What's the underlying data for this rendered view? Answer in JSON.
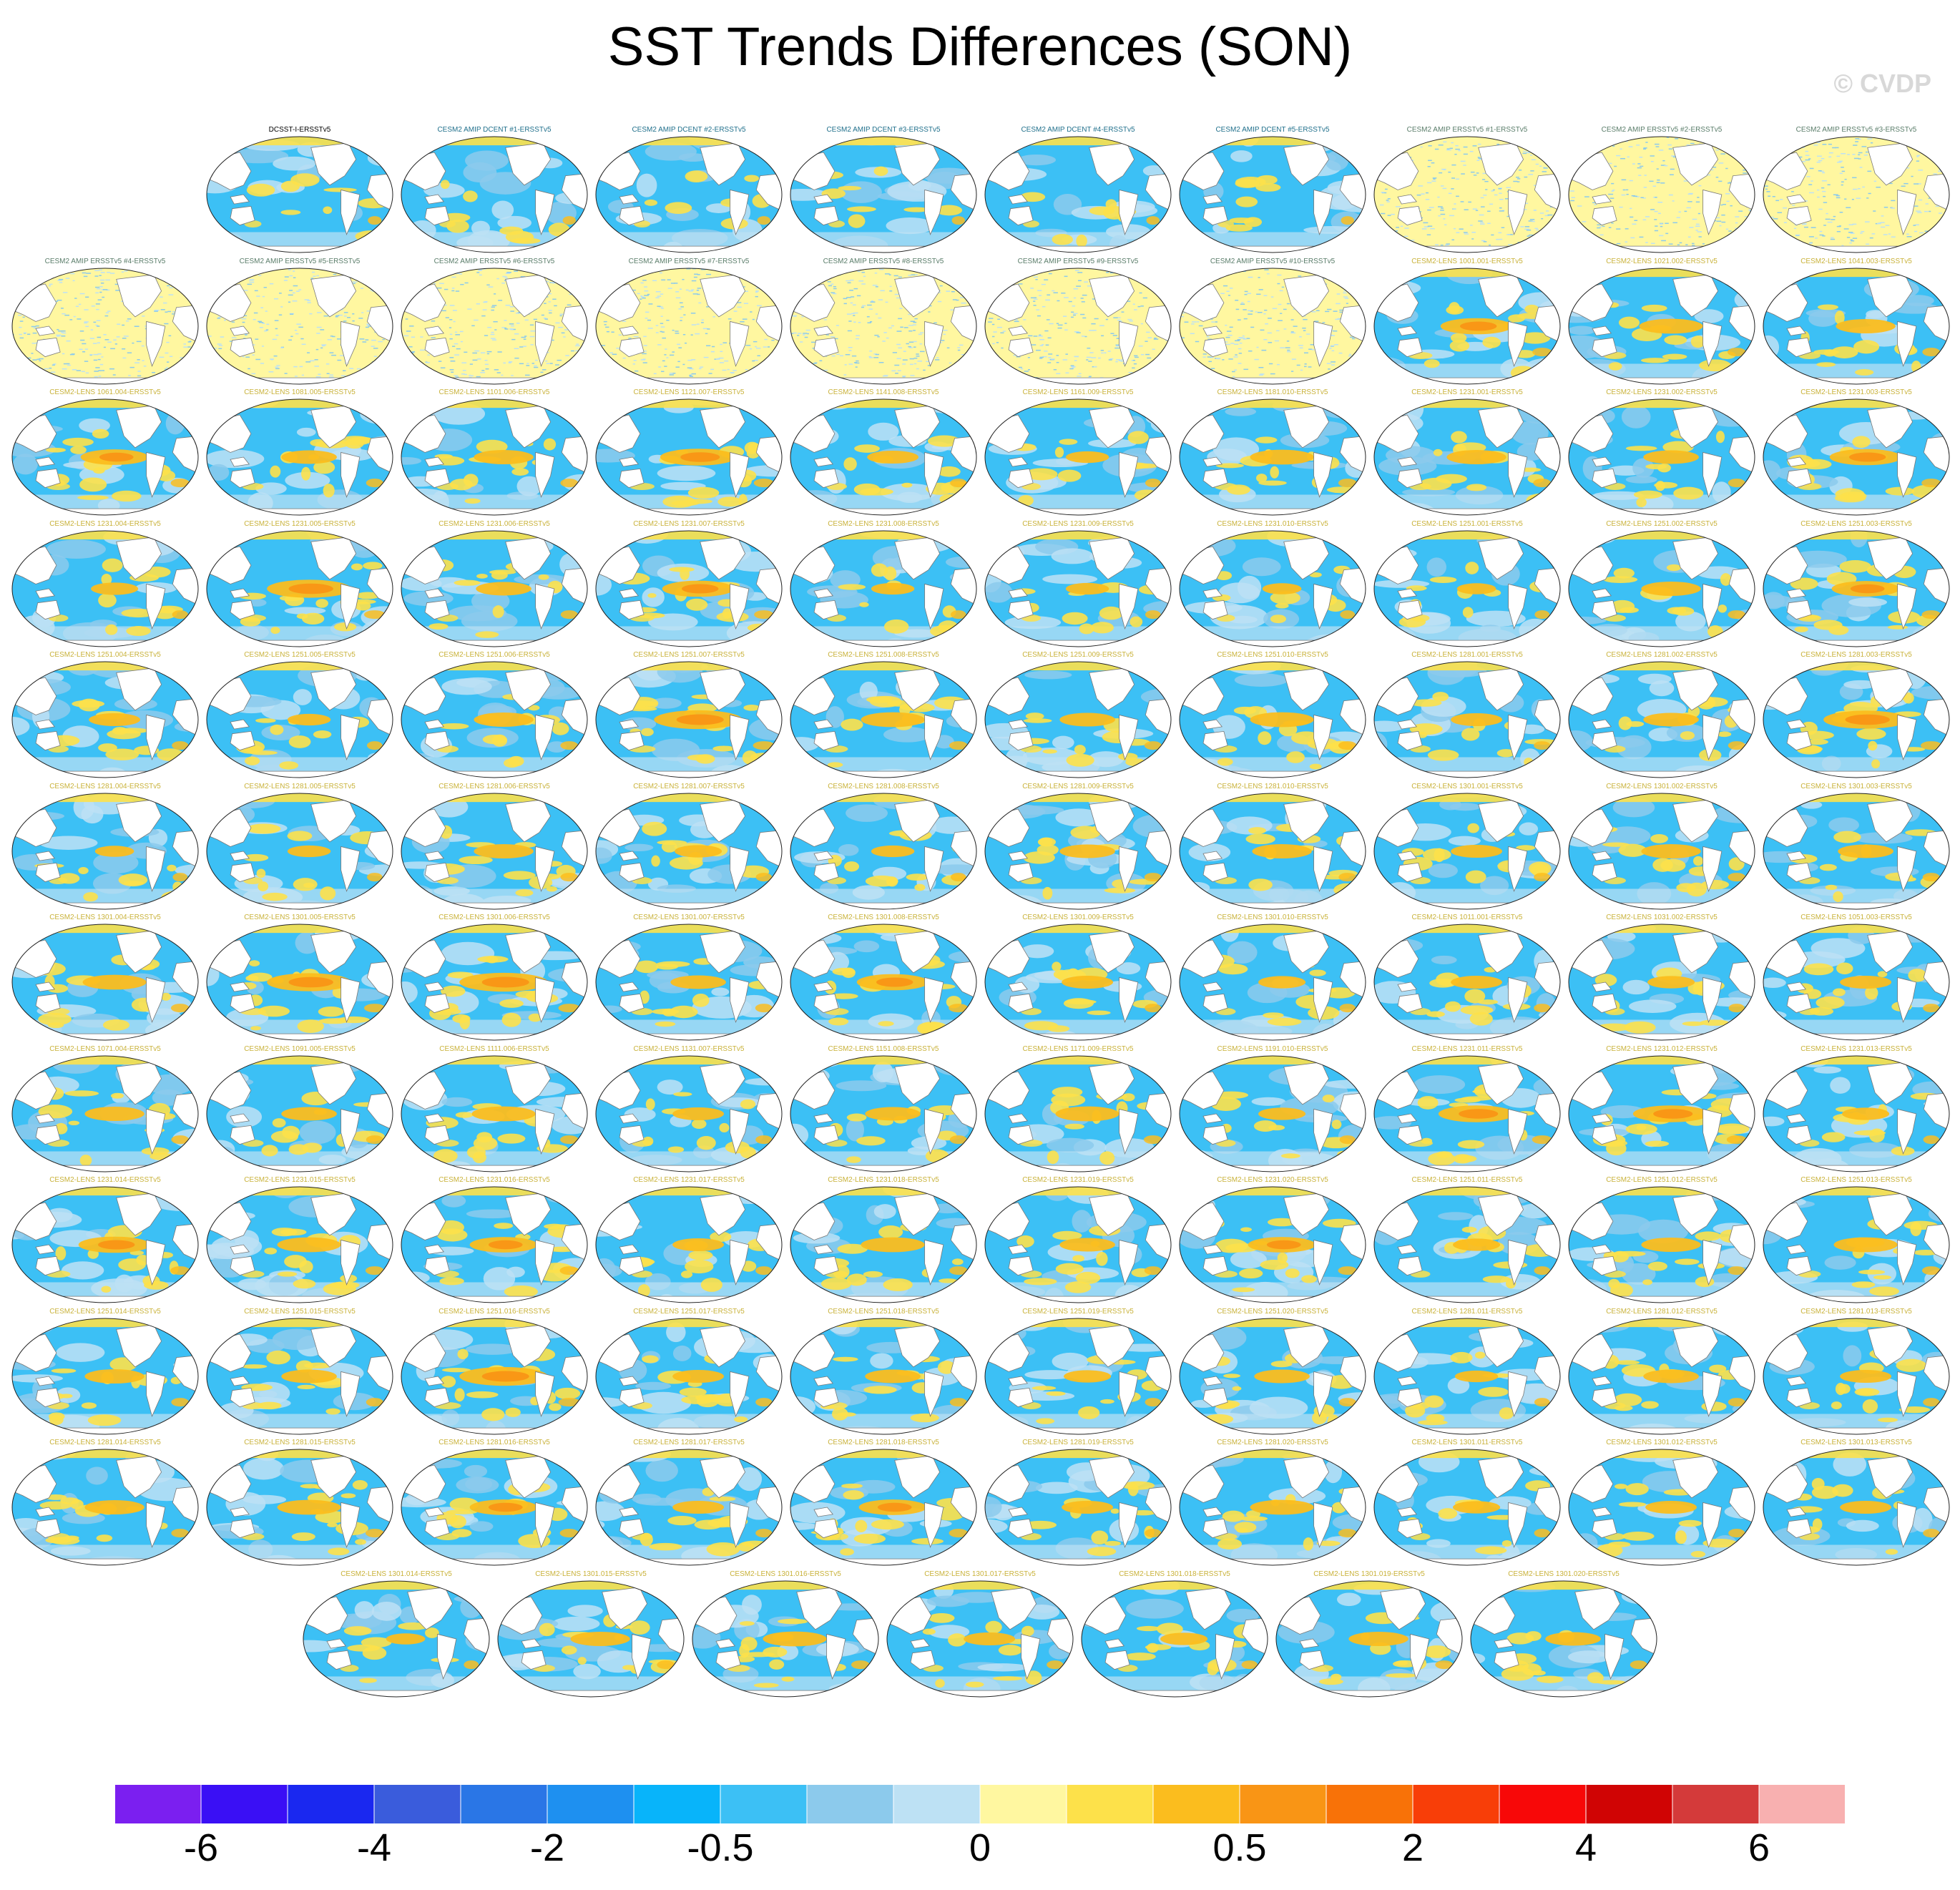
{
  "title": "SST Trends Differences (SON)",
  "watermark": "© CVDP",
  "chart_data": {
    "type": "heatmap",
    "title": "SST Trends Differences (SON)",
    "description_of_marks": "Grid of global ocean maps (Robinson projection), one per model run minus observations",
    "colorbar": {
      "colors": [
        "#7b1ff0",
        "#3a0ff5",
        "#1a28f0",
        "#3a5cdc",
        "#2a76e6",
        "#1e90f0",
        "#08b4fa",
        "#3cc0f5",
        "#8ccaec",
        "#bde1f4",
        "#fff7a0",
        "#fde14a",
        "#fbbd1e",
        "#f99515",
        "#f87208",
        "#f83e08",
        "#f80808",
        "#d00404",
        "#d43a3a",
        "#f8b0b0"
      ],
      "tick_labels": [
        "-6",
        "-4",
        "-2",
        "-0.5",
        "0",
        "0.5",
        "2",
        "4",
        "6"
      ],
      "tick_boundaries": [
        1,
        3,
        5,
        7,
        10,
        13,
        15,
        17,
        19
      ]
    },
    "panels": [
      {
        "label": "DCSST-I-ERSSTv5",
        "kind": "obs",
        "warm": 0.2
      },
      {
        "label": "CESM2 AMIP DCENT #1-ERSSTv5",
        "kind": "amip",
        "warm": 0.15
      },
      {
        "label": "CESM2 AMIP DCENT #2-ERSSTv5",
        "kind": "amip",
        "warm": 0.15
      },
      {
        "label": "CESM2 AMIP DCENT #3-ERSSTv5",
        "kind": "amip",
        "warm": 0.15
      },
      {
        "label": "CESM2 AMIP DCENT #4-ERSSTv5",
        "kind": "amip",
        "warm": 0.15
      },
      {
        "label": "CESM2 AMIP DCENT #5-ERSSTv5",
        "kind": "amip",
        "warm": 0.15
      },
      {
        "label": "CESM2 AMIP ERSSTv5 #1-ERSSTv5",
        "kind": "amip2",
        "warm": 0
      },
      {
        "label": "CESM2 AMIP ERSSTv5 #2-ERSSTv5",
        "kind": "amip2",
        "warm": 0
      },
      {
        "label": "CESM2 AMIP ERSSTv5 #3-ERSSTv5",
        "kind": "amip2",
        "warm": 0
      },
      {
        "label": "CESM2 AMIP ERSSTv5 #4-ERSSTv5",
        "kind": "amip2",
        "warm": 0
      },
      {
        "label": "CESM2 AMIP ERSSTv5 #5-ERSSTv5",
        "kind": "amip2",
        "warm": 0
      },
      {
        "label": "CESM2 AMIP ERSSTv5 #6-ERSSTv5",
        "kind": "amip2",
        "warm": 0
      },
      {
        "label": "CESM2 AMIP ERSSTv5 #7-ERSSTv5",
        "kind": "amip2",
        "warm": 0
      },
      {
        "label": "CESM2 AMIP ERSSTv5 #8-ERSSTv5",
        "kind": "amip2",
        "warm": 0
      },
      {
        "label": "CESM2 AMIP ERSSTv5 #9-ERSSTv5",
        "kind": "amip2",
        "warm": 0
      },
      {
        "label": "CESM2 AMIP ERSSTv5 #10-ERSSTv5",
        "kind": "amip2",
        "warm": 0
      },
      {
        "label": "CESM2-LENS 1001.001-ERSSTv5",
        "kind": "lens",
        "warm": 0.7
      },
      {
        "label": "CESM2-LENS 1021.002-ERSSTv5",
        "kind": "lens",
        "warm": 0.6
      },
      {
        "label": "CESM2-LENS 1041.003-ERSSTv5",
        "kind": "lens",
        "warm": 0.55
      },
      {
        "label": "CESM2-LENS 1061.004-ERSSTv5",
        "kind": "lens",
        "warm": 0.65
      },
      {
        "label": "CESM2-LENS 1081.005-ERSSTv5",
        "kind": "lens",
        "warm": 0.5
      },
      {
        "label": "CESM2-LENS 1101.006-ERSSTv5",
        "kind": "lens",
        "warm": 0.55
      },
      {
        "label": "CESM2-LENS 1121.007-ERSSTv5",
        "kind": "lens",
        "warm": 0.75
      },
      {
        "label": "CESM2-LENS 1141.008-ERSSTv5",
        "kind": "lens",
        "warm": 0.45
      },
      {
        "label": "CESM2-LENS 1161.009-ERSSTv5",
        "kind": "lens",
        "warm": 0.35
      },
      {
        "label": "CESM2-LENS 1181.010-ERSSTv5",
        "kind": "lens",
        "warm": 0.6
      },
      {
        "label": "CESM2-LENS 1231.001-ERSSTv5",
        "kind": "lens",
        "warm": 0.55
      },
      {
        "label": "CESM2-LENS 1231.002-ERSSTv5",
        "kind": "lens",
        "warm": 0.5
      },
      {
        "label": "CESM2-LENS 1231.003-ERSSTv5",
        "kind": "lens",
        "warm": 0.7
      },
      {
        "label": "CESM2-LENS 1231.004-ERSSTv5",
        "kind": "lens",
        "warm": 0.4
      },
      {
        "label": "CESM2-LENS 1231.005-ERSSTv5",
        "kind": "lens",
        "warm": 0.85
      },
      {
        "label": "CESM2-LENS 1231.006-ERSSTv5",
        "kind": "lens",
        "warm": 0.5
      },
      {
        "label": "CESM2-LENS 1231.007-ERSSTv5",
        "kind": "lens",
        "warm": 0.7
      },
      {
        "label": "CESM2-LENS 1231.008-ERSSTv5",
        "kind": "lens",
        "warm": 0.35
      },
      {
        "label": "CESM2-LENS 1231.009-ERSSTv5",
        "kind": "lens",
        "warm": 0.35
      },
      {
        "label": "CESM2-LENS 1231.010-ERSSTv5",
        "kind": "lens",
        "warm": 0.3
      },
      {
        "label": "CESM2-LENS 1251.001-ERSSTv5",
        "kind": "lens",
        "warm": 0.3
      },
      {
        "label": "CESM2-LENS 1251.002-ERSSTv5",
        "kind": "lens",
        "warm": 0.55
      },
      {
        "label": "CESM2-LENS 1251.003-ERSSTv5",
        "kind": "lens",
        "warm": 0.65
      },
      {
        "label": "CESM2-LENS 1251.004-ERSSTv5",
        "kind": "lens",
        "warm": 0.45
      },
      {
        "label": "CESM2-LENS 1251.005-ERSSTv5",
        "kind": "lens",
        "warm": 0.35
      },
      {
        "label": "CESM2-LENS 1251.006-ERSSTv5",
        "kind": "lens",
        "warm": 0.55
      },
      {
        "label": "CESM2-LENS 1251.007-ERSSTv5",
        "kind": "lens",
        "warm": 0.9
      },
      {
        "label": "CESM2-LENS 1251.008-ERSSTv5",
        "kind": "lens",
        "warm": 0.6
      },
      {
        "label": "CESM2-LENS 1251.009-ERSSTv5",
        "kind": "lens",
        "warm": 0.5
      },
      {
        "label": "CESM2-LENS 1251.010-ERSSTv5",
        "kind": "lens",
        "warm": 0.6
      },
      {
        "label": "CESM2-LENS 1281.001-ERSSTv5",
        "kind": "lens",
        "warm": 0.45
      },
      {
        "label": "CESM2-LENS 1281.002-ERSSTv5",
        "kind": "lens",
        "warm": 0.5
      },
      {
        "label": "CESM2-LENS 1281.003-ERSSTv5",
        "kind": "lens",
        "warm": 0.85
      },
      {
        "label": "CESM2-LENS 1281.004-ERSSTv5",
        "kind": "lens",
        "warm": 0.3
      },
      {
        "label": "CESM2-LENS 1281.005-ERSSTv5",
        "kind": "lens",
        "warm": 0.35
      },
      {
        "label": "CESM2-LENS 1281.006-ERSSTv5",
        "kind": "lens",
        "warm": 0.55
      },
      {
        "label": "CESM2-LENS 1281.007-ERSSTv5",
        "kind": "lens",
        "warm": 0.4
      },
      {
        "label": "CESM2-LENS 1281.008-ERSSTv5",
        "kind": "lens",
        "warm": 0.35
      },
      {
        "label": "CESM2-LENS 1281.009-ERSSTv5",
        "kind": "lens",
        "warm": 0.5
      },
      {
        "label": "CESM2-LENS 1281.010-ERSSTv5",
        "kind": "lens",
        "warm": 0.55
      },
      {
        "label": "CESM2-LENS 1301.001-ERSSTv5",
        "kind": "lens",
        "warm": 0.45
      },
      {
        "label": "CESM2-LENS 1301.002-ERSSTv5",
        "kind": "lens",
        "warm": 0.55
      },
      {
        "label": "CESM2-LENS 1301.003-ERSSTv5",
        "kind": "lens",
        "warm": 0.5
      },
      {
        "label": "CESM2-LENS 1301.004-ERSSTv5",
        "kind": "lens",
        "warm": 0.6
      },
      {
        "label": "CESM2-LENS 1301.005-ERSSTv5",
        "kind": "lens",
        "warm": 0.85
      },
      {
        "label": "CESM2-LENS 1301.006-ERSSTv5",
        "kind": "lens",
        "warm": 0.9
      },
      {
        "label": "CESM2-LENS 1301.007-ERSSTv5",
        "kind": "lens",
        "warm": 0.5
      },
      {
        "label": "CESM2-LENS 1301.008-ERSSTv5",
        "kind": "lens",
        "warm": 0.7
      },
      {
        "label": "CESM2-LENS 1301.009-ERSSTv5",
        "kind": "lens",
        "warm": 0.45
      },
      {
        "label": "CESM2-LENS 1301.010-ERSSTv5",
        "kind": "lens",
        "warm": 0.4
      },
      {
        "label": "CESM2-LENS 1011.001-ERSSTv5",
        "kind": "lens",
        "warm": 0.45
      },
      {
        "label": "CESM2-LENS 1031.002-ERSSTv5",
        "kind": "lens",
        "warm": 0.4
      },
      {
        "label": "CESM2-LENS 1051.003-ERSSTv5",
        "kind": "lens",
        "warm": 0.45
      },
      {
        "label": "CESM2-LENS 1071.004-ERSSTv5",
        "kind": "lens",
        "warm": 0.55
      },
      {
        "label": "CESM2-LENS 1091.005-ERSSTv5",
        "kind": "lens",
        "warm": 0.5
      },
      {
        "label": "CESM2-LENS 1111.006-ERSSTv5",
        "kind": "lens",
        "warm": 0.6
      },
      {
        "label": "CESM2-LENS 1131.007-ERSSTv5",
        "kind": "lens",
        "warm": 0.45
      },
      {
        "label": "CESM2-LENS 1151.008-ERSSTv5",
        "kind": "lens",
        "warm": 0.5
      },
      {
        "label": "CESM2-LENS 1171.009-ERSSTv5",
        "kind": "lens",
        "warm": 0.6
      },
      {
        "label": "CESM2-LENS 1191.010-ERSSTv5",
        "kind": "lens",
        "warm": 0.4
      },
      {
        "label": "CESM2-LENS 1231.011-ERSSTv5",
        "kind": "lens",
        "warm": 0.75
      },
      {
        "label": "CESM2-LENS 1231.012-ERSSTv5",
        "kind": "lens",
        "warm": 0.75
      },
      {
        "label": "CESM2-LENS 1231.013-ERSSTv5",
        "kind": "lens",
        "warm": 0.4
      },
      {
        "label": "CESM2-LENS 1231.014-ERSSTv5",
        "kind": "lens",
        "warm": 0.7
      },
      {
        "label": "CESM2-LENS 1231.015-ERSSTv5",
        "kind": "lens",
        "warm": 0.6
      },
      {
        "label": "CESM2-LENS 1231.016-ERSSTv5",
        "kind": "lens",
        "warm": 0.65
      },
      {
        "label": "CESM2-LENS 1231.017-ERSSTv5",
        "kind": "lens",
        "warm": 0.45
      },
      {
        "label": "CESM2-LENS 1231.018-ERSSTv5",
        "kind": "lens",
        "warm": 0.6
      },
      {
        "label": "CESM2-LENS 1231.019-ERSSTv5",
        "kind": "lens",
        "warm": 0.5
      },
      {
        "label": "CESM2-LENS 1231.020-ERSSTv5",
        "kind": "lens",
        "warm": 0.65
      },
      {
        "label": "CESM2-LENS 1251.011-ERSSTv5",
        "kind": "lens",
        "warm": 0.4
      },
      {
        "label": "CESM2-LENS 1251.012-ERSSTv5",
        "kind": "lens",
        "warm": 0.55
      },
      {
        "label": "CESM2-LENS 1251.013-ERSSTv5",
        "kind": "lens",
        "warm": 0.6
      },
      {
        "label": "CESM2-LENS 1251.014-ERSSTv5",
        "kind": "lens",
        "warm": 0.55
      },
      {
        "label": "CESM2-LENS 1251.015-ERSSTv5",
        "kind": "lens",
        "warm": 0.5
      },
      {
        "label": "CESM2-LENS 1251.016-ERSSTv5",
        "kind": "lens",
        "warm": 0.9
      },
      {
        "label": "CESM2-LENS 1251.017-ERSSTv5",
        "kind": "lens",
        "warm": 0.45
      },
      {
        "label": "CESM2-LENS 1251.018-ERSSTv5",
        "kind": "lens",
        "warm": 0.5
      },
      {
        "label": "CESM2-LENS 1251.019-ERSSTv5",
        "kind": "lens",
        "warm": 0.4
      },
      {
        "label": "CESM2-LENS 1251.020-ERSSTv5",
        "kind": "lens",
        "warm": 0.5
      },
      {
        "label": "CESM2-LENS 1281.011-ERSSTv5",
        "kind": "lens",
        "warm": 0.35
      },
      {
        "label": "CESM2-LENS 1281.012-ERSSTv5",
        "kind": "lens",
        "warm": 0.5
      },
      {
        "label": "CESM2-LENS 1281.013-ERSSTv5",
        "kind": "lens",
        "warm": 0.45
      },
      {
        "label": "CESM2-LENS 1281.014-ERSSTv5",
        "kind": "lens",
        "warm": 0.55
      },
      {
        "label": "CESM2-LENS 1281.015-ERSSTv5",
        "kind": "lens",
        "warm": 0.6
      },
      {
        "label": "CESM2-LENS 1281.016-ERSSTv5",
        "kind": "lens",
        "warm": 0.65
      },
      {
        "label": "CESM2-LENS 1281.017-ERSSTv5",
        "kind": "lens",
        "warm": 0.45
      },
      {
        "label": "CESM2-LENS 1281.018-ERSSTv5",
        "kind": "lens",
        "warm": 0.65
      },
      {
        "label": "CESM2-LENS 1281.019-ERSSTv5",
        "kind": "lens",
        "warm": 0.45
      },
      {
        "label": "CESM2-LENS 1281.020-ERSSTv5",
        "kind": "lens",
        "warm": 0.6
      },
      {
        "label": "CESM2-LENS 1301.011-ERSSTv5",
        "kind": "lens",
        "warm": 0.4
      },
      {
        "label": "CESM2-LENS 1301.012-ERSSTv5",
        "kind": "lens",
        "warm": 0.45
      },
      {
        "label": "CESM2-LENS 1301.013-ERSSTv5",
        "kind": "lens",
        "warm": 0.45
      },
      {
        "label": "CESM2-LENS 1301.014-ERSSTv5",
        "kind": "lens",
        "warm": 0.3
      },
      {
        "label": "CESM2-LENS 1301.015-ERSSTv5",
        "kind": "lens",
        "warm": 0.55
      },
      {
        "label": "CESM2-LENS 1301.016-ERSSTv5",
        "kind": "lens",
        "warm": 0.6
      },
      {
        "label": "CESM2-LENS 1301.017-ERSSTv5",
        "kind": "lens",
        "warm": 0.45
      },
      {
        "label": "CESM2-LENS 1301.018-ERSSTv5",
        "kind": "lens",
        "warm": 0.4
      },
      {
        "label": "CESM2-LENS 1301.019-ERSSTv5",
        "kind": "lens",
        "warm": 0.55
      },
      {
        "label": "CESM2-LENS 1301.020-ERSSTv5",
        "kind": "lens",
        "warm": 0.5
      }
    ]
  }
}
